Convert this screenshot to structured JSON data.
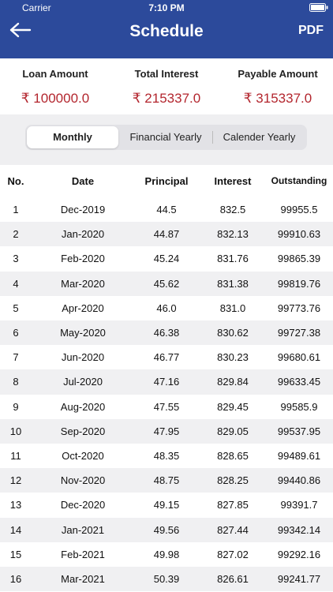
{
  "status_bar": {
    "carrier": "Carrier",
    "time": "7:10 PM"
  },
  "header": {
    "title": "Schedule",
    "action": "PDF"
  },
  "summary": [
    {
      "label": "Loan Amount",
      "value": "₹ 100000.0"
    },
    {
      "label": "Total Interest",
      "value": "₹ 215337.0"
    },
    {
      "label": "Payable Amount",
      "value": "₹ 315337.0"
    }
  ],
  "tabs": [
    "Monthly",
    "Financial Yearly",
    "Calender Yearly"
  ],
  "table": {
    "columns": [
      "No.",
      "Date",
      "Principal",
      "Interest",
      "Outstanding"
    ],
    "rows": [
      [
        "1",
        "Dec-2019",
        "44.5",
        "832.5",
        "99955.5"
      ],
      [
        "2",
        "Jan-2020",
        "44.87",
        "832.13",
        "99910.63"
      ],
      [
        "3",
        "Feb-2020",
        "45.24",
        "831.76",
        "99865.39"
      ],
      [
        "4",
        "Mar-2020",
        "45.62",
        "831.38",
        "99819.76"
      ],
      [
        "5",
        "Apr-2020",
        "46.0",
        "831.0",
        "99773.76"
      ],
      [
        "6",
        "May-2020",
        "46.38",
        "830.62",
        "99727.38"
      ],
      [
        "7",
        "Jun-2020",
        "46.77",
        "830.23",
        "99680.61"
      ],
      [
        "8",
        "Jul-2020",
        "47.16",
        "829.84",
        "99633.45"
      ],
      [
        "9",
        "Aug-2020",
        "47.55",
        "829.45",
        "99585.9"
      ],
      [
        "10",
        "Sep-2020",
        "47.95",
        "829.05",
        "99537.95"
      ],
      [
        "11",
        "Oct-2020",
        "48.35",
        "828.65",
        "99489.61"
      ],
      [
        "12",
        "Nov-2020",
        "48.75",
        "828.25",
        "99440.86"
      ],
      [
        "13",
        "Dec-2020",
        "49.15",
        "827.85",
        "99391.7"
      ],
      [
        "14",
        "Jan-2021",
        "49.56",
        "827.44",
        "99342.14"
      ],
      [
        "15",
        "Feb-2021",
        "49.98",
        "827.02",
        "99292.16"
      ],
      [
        "16",
        "Mar-2021",
        "50.39",
        "826.61",
        "99241.77"
      ]
    ]
  }
}
